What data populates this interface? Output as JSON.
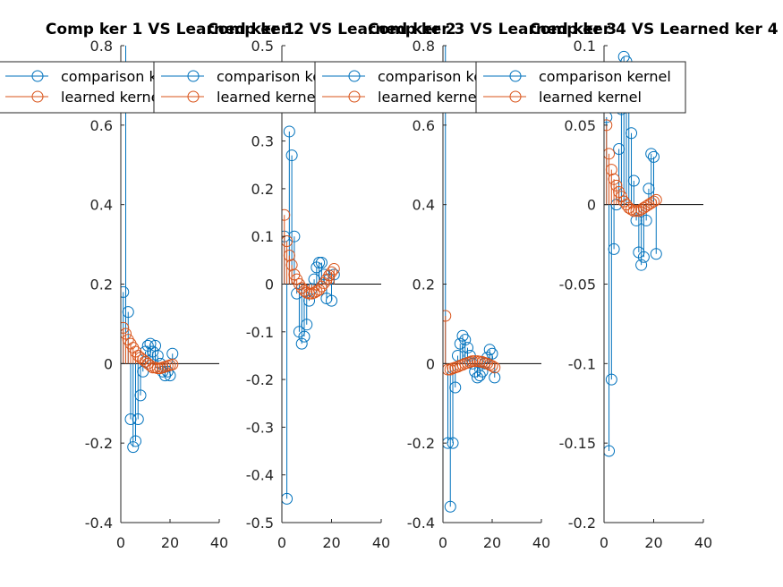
{
  "colors": {
    "comparison": "#0072BD",
    "learned": "#D95319",
    "axis": "#262626"
  },
  "chart_data": [
    {
      "type": "stem",
      "title": "Comp ker 1  VS Learned ker 1",
      "xlabel": "",
      "ylabel": "",
      "xlim": [
        0,
        40
      ],
      "ylim": [
        -0.4,
        0.8
      ],
      "xticks": [
        0,
        20,
        40
      ],
      "yticks": [
        -0.4,
        -0.2,
        0,
        0.2,
        0.4,
        0.6,
        0.8
      ],
      "ytick_labels": [
        "-0.4",
        "-0.2",
        "0",
        "0.2",
        "0.4",
        "0.6",
        "0.8"
      ],
      "legend": "top-right",
      "x": [
        1,
        2,
        3,
        4,
        5,
        6,
        7,
        8,
        9,
        10,
        11,
        12,
        13,
        14,
        15,
        16,
        17,
        18,
        19,
        20,
        21
      ],
      "series": [
        {
          "name": "comparison kernel",
          "values": [
            0.18,
            0.82,
            0.13,
            -0.14,
            -0.21,
            -0.195,
            -0.14,
            -0.08,
            -0.02,
            0.03,
            0.045,
            0.05,
            0.03,
            0.045,
            0.02,
            0.0,
            -0.02,
            -0.03,
            -0.02,
            -0.03,
            0.025
          ]
        },
        {
          "name": "learned kernel",
          "values": [
            0.09,
            0.075,
            0.06,
            0.05,
            0.04,
            0.03,
            0.02,
            0.015,
            0.01,
            0.005,
            0.0,
            -0.005,
            -0.01,
            -0.01,
            -0.012,
            -0.012,
            -0.01,
            -0.008,
            -0.006,
            -0.004,
            -0.002
          ]
        }
      ]
    },
    {
      "type": "stem",
      "title": "Comp ker 2  VS Learned ker 2",
      "xlabel": "",
      "ylabel": "",
      "xlim": [
        0,
        40
      ],
      "ylim": [
        -0.5,
        0.5
      ],
      "xticks": [
        0,
        20,
        40
      ],
      "yticks": [
        -0.5,
        -0.4,
        -0.3,
        -0.2,
        -0.1,
        0,
        0.1,
        0.2,
        0.3,
        0.4,
        0.5
      ],
      "ytick_labels": [
        "-0.5",
        "-0.4",
        "-0.3",
        "-0.2",
        "-0.1",
        "0",
        "0.1",
        "0.2",
        "0.3",
        "0.4",
        "0.5"
      ],
      "legend": "top-right",
      "x": [
        1,
        2,
        3,
        4,
        5,
        6,
        7,
        8,
        9,
        10,
        11,
        12,
        13,
        14,
        15,
        16,
        17,
        18,
        19,
        20,
        21
      ],
      "series": [
        {
          "name": "comparison kernel",
          "values": [
            0.1,
            -0.45,
            0.32,
            0.27,
            0.1,
            -0.02,
            -0.1,
            -0.125,
            -0.11,
            -0.085,
            -0.035,
            -0.01,
            0.01,
            0.035,
            0.045,
            0.045,
            0.02,
            -0.03,
            0.01,
            -0.035,
            0.02
          ]
        },
        {
          "name": "learned kernel",
          "values": [
            0.145,
            0.09,
            0.06,
            0.04,
            0.02,
            0.01,
            0.0,
            -0.008,
            -0.014,
            -0.018,
            -0.02,
            -0.02,
            -0.018,
            -0.015,
            -0.012,
            -0.005,
            0.002,
            0.01,
            0.018,
            0.025,
            0.032
          ]
        }
      ]
    },
    {
      "type": "stem",
      "title": "Comp ker 3  VS Learned ker 3",
      "xlabel": "",
      "ylabel": "",
      "xlim": [
        0,
        40
      ],
      "ylim": [
        -0.4,
        0.8
      ],
      "xticks": [
        0,
        20,
        40
      ],
      "yticks": [
        -0.4,
        -0.2,
        0,
        0.2,
        0.4,
        0.6,
        0.8
      ],
      "ytick_labels": [
        "-0.4",
        "-0.2",
        "0",
        "0.2",
        "0.4",
        "0.6",
        "0.8"
      ],
      "legend": "top-right",
      "x": [
        1,
        2,
        3,
        4,
        5,
        6,
        7,
        8,
        9,
        10,
        11,
        12,
        13,
        14,
        15,
        16,
        17,
        18,
        19,
        20,
        21
      ],
      "series": [
        {
          "name": "comparison kernel",
          "values": [
            0.82,
            -0.2,
            -0.36,
            -0.2,
            -0.06,
            0.02,
            0.05,
            0.07,
            0.06,
            0.04,
            0.02,
            0.0,
            -0.02,
            -0.035,
            -0.03,
            -0.02,
            0.0,
            0.015,
            0.035,
            0.025,
            -0.035
          ]
        },
        {
          "name": "learned kernel",
          "values": [
            0.12,
            -0.015,
            -0.015,
            -0.012,
            -0.01,
            -0.008,
            -0.005,
            -0.003,
            0.0,
            0.002,
            0.004,
            0.006,
            0.006,
            0.006,
            0.005,
            0.004,
            0.002,
            0.0,
            -0.003,
            -0.006,
            -0.01
          ]
        }
      ]
    },
    {
      "type": "stem",
      "title": "Comp ker 4  VS Learned ker 4",
      "xlabel": "",
      "ylabel": "",
      "xlim": [
        0,
        40
      ],
      "ylim": [
        -0.2,
        0.1
      ],
      "xticks": [
        0,
        20,
        40
      ],
      "yticks": [
        -0.2,
        -0.15,
        -0.1,
        -0.05,
        0,
        0.05,
        0.1
      ],
      "ytick_labels": [
        "-0.2",
        "-0.15",
        "-0.1",
        "-0.05",
        "0",
        "0.05",
        "0.1"
      ],
      "legend": "top-right",
      "x": [
        1,
        2,
        3,
        4,
        5,
        6,
        7,
        8,
        9,
        10,
        11,
        12,
        13,
        14,
        15,
        16,
        17,
        18,
        19,
        20,
        21
      ],
      "series": [
        {
          "name": "comparison kernel",
          "values": [
            0.055,
            -0.155,
            -0.11,
            -0.028,
            0.0,
            0.035,
            0.06,
            0.093,
            0.09,
            0.075,
            0.045,
            0.015,
            -0.01,
            -0.03,
            -0.038,
            -0.033,
            -0.01,
            0.01,
            0.032,
            0.03,
            -0.031
          ]
        },
        {
          "name": "learned kernel",
          "values": [
            0.05,
            0.032,
            0.022,
            0.016,
            0.012,
            0.008,
            0.005,
            0.002,
            0.0,
            -0.002,
            -0.003,
            -0.004,
            -0.004,
            -0.004,
            -0.003,
            -0.002,
            -0.001,
            0.0,
            0.001,
            0.002,
            0.003
          ]
        }
      ]
    }
  ]
}
